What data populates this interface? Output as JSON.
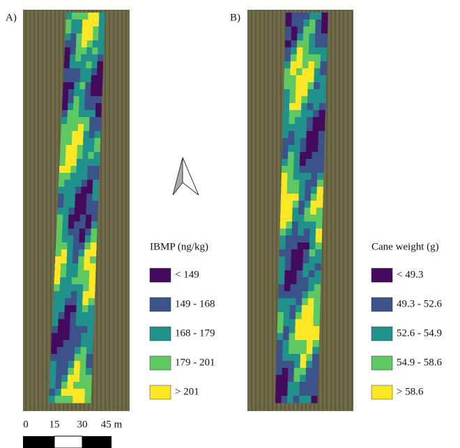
{
  "panels": [
    {
      "label": "A)",
      "legend": {
        "title": "IBMP (ng/kg)",
        "items": [
          {
            "label": "< 149",
            "color": "#440a5e"
          },
          {
            "label": "149 - 168",
            "color": "#3b528b"
          },
          {
            "label": "168 - 179",
            "color": "#21918c"
          },
          {
            "label": "179 - 201",
            "color": "#5ec962"
          },
          {
            "label": "> 201",
            "color": "#fde725"
          }
        ]
      }
    },
    {
      "label": "B)",
      "legend": {
        "title": "Cane weight (g)",
        "items": [
          {
            "label": "< 49.3",
            "color": "#440a5e"
          },
          {
            "label": "49.3 - 52.6",
            "color": "#3b528b"
          },
          {
            "label": "52.6 - 54.9",
            "color": "#21918c"
          },
          {
            "label": "54.9 - 58.6",
            "color": "#5ec962"
          },
          {
            "label": "> 58.6",
            "color": "#fde725"
          }
        ]
      }
    }
  ],
  "scale_bar": {
    "labels": [
      "0",
      "15",
      "30",
      "45 m"
    ]
  }
}
